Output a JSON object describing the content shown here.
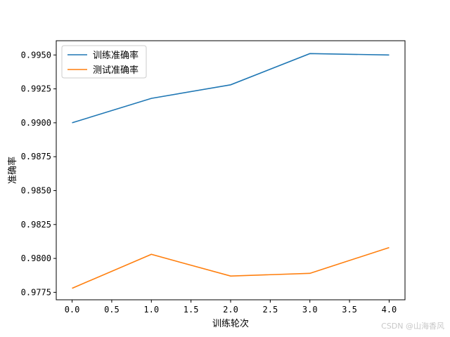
{
  "chart_data": {
    "type": "line",
    "xlabel": "训练轮次",
    "ylabel": "准确率",
    "xlim": [
      -0.2,
      4.2
    ],
    "ylim": [
      0.97695,
      0.99605
    ],
    "xticks": [
      "0.0",
      "0.5",
      "1.0",
      "1.5",
      "2.0",
      "2.5",
      "3.0",
      "3.5",
      "4.0"
    ],
    "yticks": [
      "0.9775",
      "0.9800",
      "0.9825",
      "0.9850",
      "0.9875",
      "0.9900",
      "0.9925",
      "0.9950"
    ],
    "grid": false,
    "legend_position": "top-left",
    "series": [
      {
        "name": "训练准确率",
        "color": "#1f77b4",
        "x": [
          0,
          1,
          2,
          3,
          4
        ],
        "y": [
          0.99,
          0.9918,
          0.9928,
          0.9951,
          0.995
        ]
      },
      {
        "name": "测试准确率",
        "color": "#ff7f0e",
        "x": [
          0,
          1,
          2,
          3,
          4
        ],
        "y": [
          0.9778,
          0.9803,
          0.9787,
          0.9789,
          0.9808
        ]
      }
    ]
  },
  "watermark": "CSDN @山海香风"
}
